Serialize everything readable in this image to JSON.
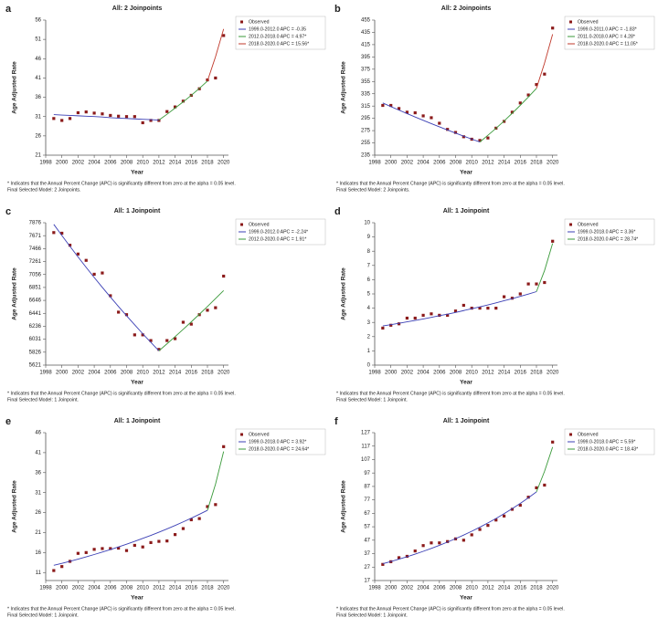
{
  "chart_data": [
    {
      "panel_label": "a",
      "type": "scatter",
      "title": "All: 2 Joinpoints",
      "x_label": "Year",
      "y_label": "Age Adjusted Rate",
      "x": [
        1999,
        2000,
        2001,
        2002,
        2003,
        2004,
        2005,
        2006,
        2007,
        2008,
        2009,
        2010,
        2011,
        2012,
        2013,
        2014,
        2015,
        2016,
        2017,
        2018,
        2019,
        2020
      ],
      "series": [
        {
          "name": "Observed",
          "color": "#8b1a1a",
          "marker": true,
          "values": [
            30.5,
            30.0,
            30.5,
            32.0,
            32.2,
            31.9,
            31.7,
            31.3,
            31.1,
            31.0,
            31.0,
            29.4,
            30.0,
            30.0,
            32.3,
            33.5,
            35.0,
            36.5,
            38.2,
            40.5,
            41.0,
            52.0
          ]
        },
        {
          "name": "1999.0-2012.0 APC = -0.35",
          "color": "#3b3fb5",
          "values": [
            31.5,
            31.4,
            31.3,
            31.2,
            31.1,
            31.0,
            30.9,
            30.7,
            30.6,
            30.5,
            30.4,
            30.3,
            30.2,
            30.1,
            null,
            null,
            null,
            null,
            null,
            null,
            null,
            null
          ]
        },
        {
          "name": "2012.0-2018.0 APC = 4.97*",
          "color": "#3a9a3a",
          "values": [
            null,
            null,
            null,
            null,
            null,
            null,
            null,
            null,
            null,
            null,
            null,
            null,
            null,
            30.1,
            31.6,
            33.2,
            34.8,
            36.5,
            38.3,
            40.2,
            null,
            null
          ]
        },
        {
          "name": "2018.0-2020.0 APC = 15.56*",
          "color": "#c0392b",
          "values": [
            null,
            null,
            null,
            null,
            null,
            null,
            null,
            null,
            null,
            null,
            null,
            null,
            null,
            null,
            null,
            null,
            null,
            null,
            null,
            40.2,
            46.5,
            53.7
          ]
        }
      ],
      "xlim": [
        1998,
        2020.6
      ],
      "ylim": [
        21,
        56
      ],
      "xticks": [
        1998,
        2000,
        2002,
        2004,
        2006,
        2008,
        2010,
        2012,
        2014,
        2016,
        2018,
        2020
      ],
      "yticks": [
        21,
        26,
        31,
        36,
        41,
        46,
        51,
        56
      ],
      "footnote": [
        "* Indicates that the Annual Percent Change (APC) is significantly different from zero at the alpha = 0.05 level.",
        "Final Selected Model: 2 Joinpoints."
      ]
    },
    {
      "panel_label": "b",
      "type": "scatter",
      "title": "All: 2 Joinpoints",
      "x_label": "Year",
      "y_label": "Age Adjusted Rate",
      "x": [
        1999,
        2000,
        2001,
        2002,
        2003,
        2004,
        2005,
        2006,
        2007,
        2008,
        2009,
        2010,
        2011,
        2012,
        2013,
        2014,
        2015,
        2016,
        2017,
        2018,
        2019,
        2020
      ],
      "series": [
        {
          "name": "Observed",
          "color": "#8b1a1a",
          "marker": true,
          "values": [
            316,
            316,
            311,
            305,
            304,
            299,
            296,
            287,
            277,
            272,
            265,
            261,
            259,
            263,
            279,
            290,
            305,
            320,
            333,
            350,
            367,
            442
          ]
        },
        {
          "name": "1999.0-2011.0 APC = -1.83*",
          "color": "#3b3fb5",
          "values": [
            320,
            314.1,
            308.4,
            302.7,
            297.2,
            291.8,
            286.4,
            281.2,
            276.0,
            271.0,
            266.0,
            261.2,
            256.4,
            null,
            null,
            null,
            null,
            null,
            null,
            null,
            null,
            null
          ]
        },
        {
          "name": "2011.0-2018.0 APC = 4.28*",
          "color": "#3a9a3a",
          "values": [
            null,
            null,
            null,
            null,
            null,
            null,
            null,
            null,
            null,
            null,
            null,
            null,
            256.4,
            267.4,
            278.8,
            290.7,
            303.2,
            316.2,
            329.7,
            343.8,
            null,
            null
          ]
        },
        {
          "name": "2018.0-2020.0 APC = 11.05*",
          "color": "#c0392b",
          "values": [
            null,
            null,
            null,
            null,
            null,
            null,
            null,
            null,
            null,
            null,
            null,
            null,
            null,
            null,
            null,
            null,
            null,
            null,
            null,
            343.8,
            385,
            432
          ]
        }
      ],
      "xlim": [
        1998,
        2020.6
      ],
      "ylim": [
        235,
        455
      ],
      "xticks": [
        1998,
        2000,
        2002,
        2004,
        2006,
        2008,
        2010,
        2012,
        2014,
        2016,
        2018,
        2020
      ],
      "yticks": [
        235,
        255,
        275,
        295,
        315,
        335,
        355,
        375,
        395,
        415,
        435,
        455
      ],
      "footnote": [
        "* Indicates that the Annual Percent Change (APC) is significantly different from zero at the alpha = 0.05 level.",
        "Final Selected Model: 2 Joinpoints."
      ]
    },
    {
      "panel_label": "c",
      "type": "scatter",
      "title": "All: 1 Joinpoint",
      "x_label": "Year",
      "y_label": "Age Adjusted Rate",
      "x": [
        1999,
        2000,
        2001,
        2002,
        2003,
        2004,
        2005,
        2006,
        2007,
        2008,
        2009,
        2010,
        2011,
        2012,
        2013,
        2014,
        2015,
        2016,
        2017,
        2018,
        2019,
        2020
      ],
      "series": [
        {
          "name": "Observed",
          "color": "#8b1a1a",
          "marker": true,
          "values": [
            7720,
            7710,
            7520,
            7380,
            7280,
            7060,
            7080,
            6720,
            6460,
            6420,
            6100,
            6100,
            6010,
            5870,
            6010,
            6040,
            6300,
            6270,
            6420,
            6490,
            6530,
            7030
          ]
        },
        {
          "name": "1999.0-2012.0 APC = -2.24*",
          "color": "#3b3fb5",
          "values": [
            7850,
            7674,
            7502,
            7334,
            7170,
            7009,
            6852,
            6699,
            6549,
            6402,
            6259,
            6118,
            5981,
            5847,
            null,
            null,
            null,
            null,
            null,
            null,
            null,
            null
          ]
        },
        {
          "name": "2012.0-2020.0 APC = 1.91*",
          "color": "#3a9a3a",
          "values": [
            null,
            null,
            null,
            null,
            null,
            null,
            null,
            null,
            null,
            null,
            null,
            null,
            null,
            5847,
            5959,
            6072,
            6188,
            6306,
            6427,
            6549,
            6675,
            6802
          ]
        }
      ],
      "xlim": [
        1998,
        2020.6
      ],
      "ylim": [
        5621,
        7876
      ],
      "xticks": [
        1998,
        2000,
        2002,
        2004,
        2006,
        2008,
        2010,
        2012,
        2014,
        2016,
        2018,
        2020
      ],
      "yticks": [
        5621,
        5826,
        6031,
        6236,
        6441,
        6646,
        6851,
        7056,
        7261,
        7466,
        7671,
        7876
      ],
      "footnote": [
        "* Indicates that the Annual Percent Change (APC) is significantly different from zero at the alpha = 0.05 level.",
        "Final Selected Model: 1 Joinpoint."
      ]
    },
    {
      "panel_label": "d",
      "type": "scatter",
      "title": "All: 1 Joinpoint",
      "x_label": "Year",
      "y_label": "Age Adjusted Rate",
      "x": [
        1999,
        2000,
        2001,
        2002,
        2003,
        2004,
        2005,
        2006,
        2007,
        2008,
        2009,
        2010,
        2011,
        2012,
        2013,
        2014,
        2015,
        2016,
        2017,
        2018,
        2019,
        2020
      ],
      "series": [
        {
          "name": "Observed",
          "color": "#8b1a1a",
          "marker": true,
          "values": [
            2.6,
            2.8,
            2.9,
            3.3,
            3.3,
            3.5,
            3.6,
            3.5,
            3.5,
            3.8,
            4.2,
            4.0,
            4.0,
            4.0,
            4.0,
            4.8,
            4.7,
            5.0,
            5.7,
            5.7,
            5.8,
            8.7
          ]
        },
        {
          "name": "1999.0-2018.0 APC = 3.36*",
          "color": "#3b3fb5",
          "values": [
            2.75,
            2.84,
            2.94,
            3.04,
            3.14,
            3.24,
            3.35,
            3.47,
            3.58,
            3.7,
            3.83,
            3.96,
            4.09,
            4.23,
            4.37,
            4.52,
            4.67,
            4.83,
            4.99,
            5.16,
            null,
            null
          ]
        },
        {
          "name": "2018.0-2020.0 APC = 28.74*",
          "color": "#3a9a3a",
          "values": [
            null,
            null,
            null,
            null,
            null,
            null,
            null,
            null,
            null,
            null,
            null,
            null,
            null,
            null,
            null,
            null,
            null,
            null,
            null,
            5.16,
            6.64,
            8.55
          ]
        }
      ],
      "xlim": [
        1998,
        2020.6
      ],
      "ylim": [
        0,
        10
      ],
      "xticks": [
        1998,
        2000,
        2002,
        2004,
        2006,
        2008,
        2010,
        2012,
        2014,
        2016,
        2018,
        2020
      ],
      "yticks": [
        0,
        1,
        2,
        3,
        4,
        5,
        6,
        7,
        8,
        9,
        10
      ],
      "footnote": [
        "* Indicates that the Annual Percent Change (APC) is significantly different from zero at the alpha = 0.05 level.",
        "Final Selected Model: 1 Joinpoint."
      ]
    },
    {
      "panel_label": "e",
      "type": "scatter",
      "title": "All: 1 Joinpoint",
      "x_label": "Year",
      "y_label": "Age Adjusted Rate",
      "x": [
        1999,
        2000,
        2001,
        2002,
        2003,
        2004,
        2005,
        2006,
        2007,
        2008,
        2009,
        2010,
        2011,
        2012,
        2013,
        2014,
        2015,
        2016,
        2017,
        2018,
        2019,
        2020
      ],
      "series": [
        {
          "name": "Observed",
          "color": "#8b1a1a",
          "marker": true,
          "values": [
            11.5,
            12.5,
            13.8,
            15.8,
            16.0,
            16.8,
            17.0,
            17.0,
            17.1,
            16.5,
            17.8,
            17.4,
            18.5,
            18.8,
            18.9,
            20.5,
            22.0,
            24.2,
            24.5,
            27.5,
            28.0,
            42.5
          ]
        },
        {
          "name": "1999.0-2018.0 APC = 3.92*",
          "color": "#3b3fb5",
          "values": [
            12.8,
            13.3,
            13.82,
            14.36,
            14.93,
            15.51,
            16.12,
            16.75,
            17.41,
            18.09,
            18.8,
            19.54,
            20.3,
            21.1,
            21.92,
            22.78,
            23.68,
            24.6,
            25.57,
            26.57,
            null,
            null
          ]
        },
        {
          "name": "2018.0-2020.0 APC = 24.64*",
          "color": "#3a9a3a",
          "values": [
            null,
            null,
            null,
            null,
            null,
            null,
            null,
            null,
            null,
            null,
            null,
            null,
            null,
            null,
            null,
            null,
            null,
            null,
            null,
            26.57,
            33.12,
            41.28
          ]
        }
      ],
      "xlim": [
        1998,
        2020.6
      ],
      "ylim": [
        9,
        46
      ],
      "xticks": [
        1998,
        2000,
        2002,
        2004,
        2006,
        2008,
        2010,
        2012,
        2014,
        2016,
        2018,
        2020
      ],
      "yticks": [
        11,
        16,
        21,
        26,
        31,
        36,
        41,
        46
      ],
      "footnote": [
        "* Indicates that the Annual Percent Change (APC) is significantly different from zero at the alpha = 0.05 level.",
        "Final Selected Model: 1 Joinpoint."
      ]
    },
    {
      "panel_label": "f",
      "type": "scatter",
      "title": "All: 1 Joinpoint",
      "x_label": "Year",
      "y_label": "Age Adjusted Rate",
      "x": [
        1999,
        2000,
        2001,
        2002,
        2003,
        2004,
        2005,
        2006,
        2007,
        2008,
        2009,
        2010,
        2011,
        2012,
        2013,
        2014,
        2015,
        2016,
        2017,
        2018,
        2019,
        2020
      ],
      "series": [
        {
          "name": "Observed",
          "color": "#8b1a1a",
          "marker": true,
          "values": [
            29,
            31,
            34,
            35,
            39,
            43,
            45,
            45,
            46,
            48,
            47,
            51,
            55,
            58,
            62,
            65,
            70,
            73,
            79,
            86,
            88,
            120
          ]
        },
        {
          "name": "1999.0-2018.0 APC = 5.59*",
          "color": "#3b3fb5",
          "values": [
            29.5,
            31.15,
            32.89,
            34.73,
            36.67,
            38.72,
            40.89,
            43.17,
            45.59,
            48.14,
            50.83,
            53.67,
            56.67,
            59.84,
            63.19,
            66.72,
            70.45,
            74.39,
            78.55,
            82.94,
            null,
            null
          ]
        },
        {
          "name": "2018.0-2020.0 APC = 18.43*",
          "color": "#3a9a3a",
          "values": [
            null,
            null,
            null,
            null,
            null,
            null,
            null,
            null,
            null,
            null,
            null,
            null,
            null,
            null,
            null,
            null,
            null,
            null,
            null,
            82.94,
            98.23,
            116.33
          ]
        }
      ],
      "xlim": [
        1998,
        2020.6
      ],
      "ylim": [
        17,
        127
      ],
      "xticks": [
        1998,
        2000,
        2002,
        2004,
        2006,
        2008,
        2010,
        2012,
        2014,
        2016,
        2018,
        2020
      ],
      "yticks": [
        17,
        27,
        37,
        47,
        57,
        67,
        77,
        87,
        97,
        107,
        117,
        127
      ],
      "footnote": [
        "* Indicates that the Annual Percent Change (APC) is significantly different from zero at the alpha = 0.05 level.",
        "Final Selected Model: 1 Joinpoint."
      ]
    }
  ]
}
